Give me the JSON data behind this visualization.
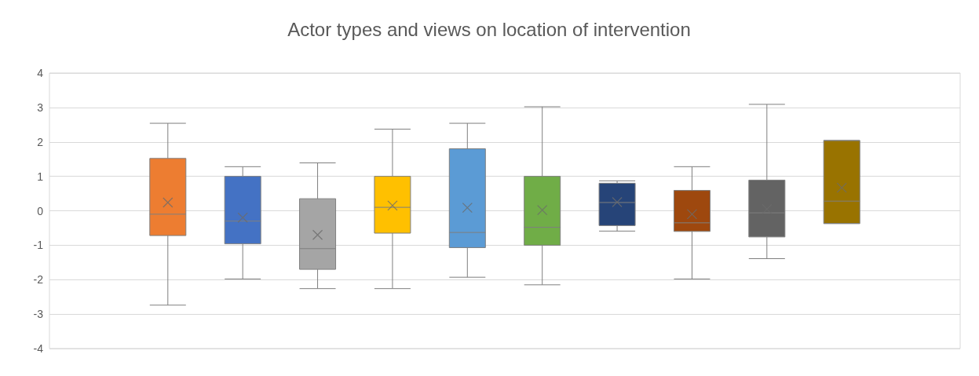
{
  "chart_data": {
    "type": "box",
    "title": "Actor types and views on location of intervention",
    "categories": [
      null
    ],
    "series": [
      {
        "color": "#ed7d31",
        "boxes": [
          {
            "low": -2.74,
            "q1": -0.72,
            "median": -0.1,
            "q3": 1.52,
            "high": 2.54,
            "mean": 0.24
          }
        ]
      },
      {
        "color": "#4472c4",
        "boxes": [
          {
            "low": -1.98,
            "q1": -0.96,
            "median": -0.3,
            "q3": 1.0,
            "high": 1.28,
            "mean": -0.2
          }
        ]
      },
      {
        "color": "#a5a5a5",
        "boxes": [
          {
            "low": -2.26,
            "q1": -1.7,
            "median": -1.1,
            "q3": 0.35,
            "high": 1.39,
            "mean": -0.7
          }
        ]
      },
      {
        "color": "#ffc000",
        "boxes": [
          {
            "low": -2.26,
            "q1": -0.65,
            "median": 0.1,
            "q3": 1.0,
            "high": 2.37,
            "mean": 0.15
          }
        ]
      },
      {
        "color": "#5b9bd5",
        "boxes": [
          {
            "low": -1.93,
            "q1": -1.07,
            "median": -0.63,
            "q3": 1.8,
            "high": 2.54,
            "mean": 0.09
          }
        ]
      },
      {
        "color": "#70ad47",
        "boxes": [
          {
            "low": -2.15,
            "q1": -1.0,
            "median": -0.48,
            "q3": 1.0,
            "high": 3.02,
            "mean": 0.02
          }
        ]
      },
      {
        "color": "#264478",
        "boxes": [
          {
            "low": -0.59,
            "q1": -0.43,
            "median": 0.24,
            "q3": 0.8,
            "high": 0.87,
            "mean": 0.25
          }
        ]
      },
      {
        "color": "#9e480e",
        "boxes": [
          {
            "low": -1.98,
            "q1": -0.6,
            "median": -0.35,
            "q3": 0.59,
            "high": 1.28,
            "mean": -0.1
          }
        ]
      },
      {
        "color": "#636363",
        "boxes": [
          {
            "low": -1.39,
            "q1": -0.76,
            "median": -0.06,
            "q3": 0.89,
            "high": 3.09,
            "mean": 0.05
          }
        ]
      },
      {
        "color": "#997300",
        "boxes": [
          {
            "low": -0.37,
            "q1": -0.37,
            "median": 0.28,
            "q3": 2.04,
            "high": 2.04,
            "mean": 0.67
          }
        ]
      }
    ],
    "ylim": [
      -4,
      4
    ],
    "yticks": [
      -4,
      -3,
      -2,
      -1,
      0,
      1,
      2,
      3,
      4
    ],
    "grid": "y"
  }
}
